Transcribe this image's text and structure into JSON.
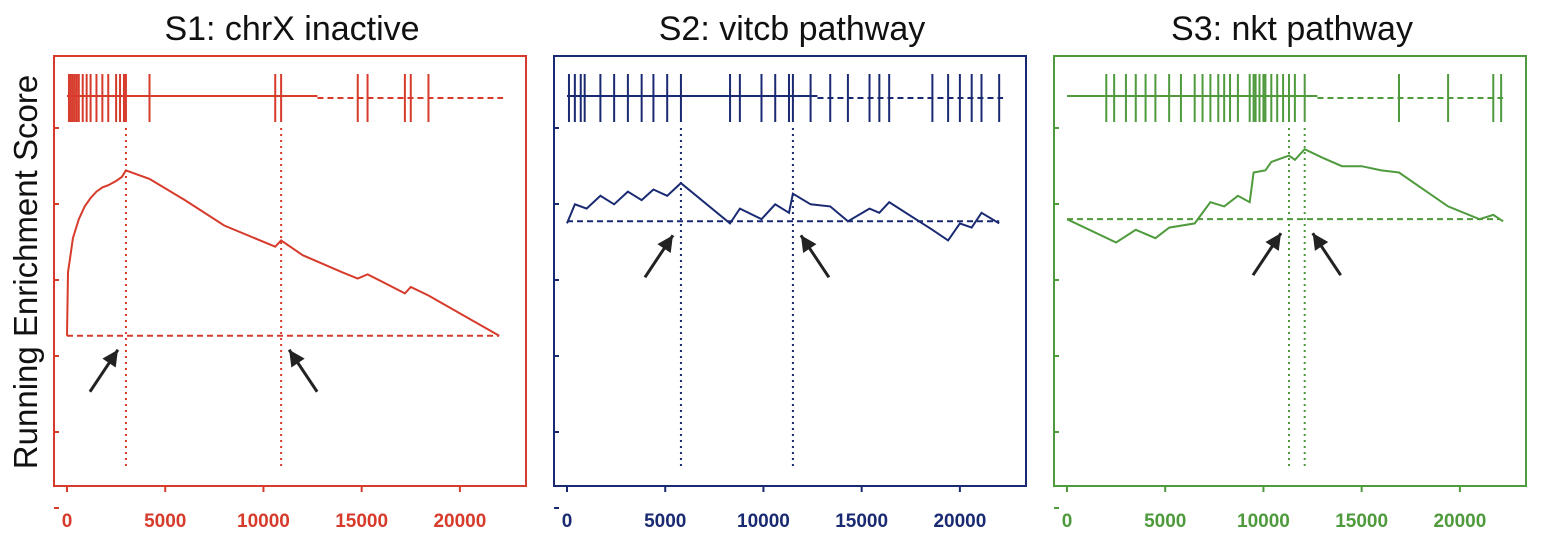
{
  "ylabel": "Running Enrichment Score",
  "chart_data": [
    {
      "type": "line",
      "title": "S1: chrX inactive",
      "color": "#d63b2b",
      "xlim": [
        0,
        22500
      ],
      "xticks": [
        "0",
        "5000",
        "10000",
        "15000",
        "20000"
      ],
      "xtick_values": [
        0,
        5000,
        10000,
        15000,
        20000
      ],
      "ylim": [
        0,
        1
      ],
      "ylabel": "Running Enrichment Score",
      "hits": [
        100,
        200,
        300,
        400,
        500,
        600,
        800,
        1000,
        1200,
        1500,
        1800,
        2100,
        2500,
        2700,
        2900,
        3000,
        4200,
        10600,
        10900,
        14800,
        15300,
        17200,
        17500,
        18400
      ],
      "running_score": [
        [
          0,
          0.02
        ],
        [
          50,
          0.32
        ],
        [
          150,
          0.38
        ],
        [
          300,
          0.48
        ],
        [
          600,
          0.57
        ],
        [
          900,
          0.63
        ],
        [
          1200,
          0.67
        ],
        [
          1500,
          0.7
        ],
        [
          1800,
          0.72
        ],
        [
          2100,
          0.73
        ],
        [
          2500,
          0.75
        ],
        [
          2800,
          0.77
        ],
        [
          3000,
          0.8
        ],
        [
          4200,
          0.76
        ],
        [
          6000,
          0.66
        ],
        [
          8000,
          0.54
        ],
        [
          10600,
          0.44
        ],
        [
          10900,
          0.47
        ],
        [
          12000,
          0.4
        ],
        [
          14000,
          0.32
        ],
        [
          14800,
          0.29
        ],
        [
          15300,
          0.31
        ],
        [
          17200,
          0.22
        ],
        [
          17500,
          0.25
        ],
        [
          18400,
          0.21
        ],
        [
          22000,
          0.02
        ]
      ],
      "baseline": 0.02,
      "marker_x": [
        3000,
        10900
      ],
      "legend": ""
    },
    {
      "type": "line",
      "title": "S2: vitcb pathway",
      "color": "#1a2a72",
      "xlim": [
        0,
        22500
      ],
      "xticks": [
        "0",
        "5000",
        "10000",
        "15000",
        "20000"
      ],
      "xtick_values": [
        0,
        5000,
        10000,
        15000,
        20000
      ],
      "ylim": [
        0,
        1
      ],
      "hits": [
        100,
        400,
        700,
        900,
        1700,
        2400,
        3100,
        3800,
        4400,
        5100,
        5800,
        8300,
        8800,
        9900,
        10600,
        11300,
        11500,
        12400,
        13400,
        14300,
        15400,
        15900,
        16400,
        18600,
        19400,
        20000,
        20600,
        21100,
        22000
      ],
      "running_score": [
        [
          0,
          0.55
        ],
        [
          400,
          0.64
        ],
        [
          1000,
          0.62
        ],
        [
          1700,
          0.68
        ],
        [
          2400,
          0.64
        ],
        [
          3100,
          0.7
        ],
        [
          3800,
          0.66
        ],
        [
          4400,
          0.71
        ],
        [
          5100,
          0.68
        ],
        [
          5800,
          0.74
        ],
        [
          8300,
          0.55
        ],
        [
          8800,
          0.62
        ],
        [
          9900,
          0.57
        ],
        [
          10600,
          0.64
        ],
        [
          11300,
          0.6
        ],
        [
          11500,
          0.69
        ],
        [
          12400,
          0.64
        ],
        [
          13400,
          0.63
        ],
        [
          14300,
          0.56
        ],
        [
          15400,
          0.62
        ],
        [
          15900,
          0.6
        ],
        [
          16400,
          0.65
        ],
        [
          18600,
          0.52
        ],
        [
          19400,
          0.47
        ],
        [
          20000,
          0.55
        ],
        [
          20600,
          0.53
        ],
        [
          21100,
          0.6
        ],
        [
          22000,
          0.55
        ]
      ],
      "baseline": 0.56,
      "marker_x": [
        5800,
        11500
      ],
      "legend": ""
    },
    {
      "type": "line",
      "title": "S3: nkt pathway",
      "color": "#4e9a3c",
      "xlim": [
        0,
        22500
      ],
      "xticks": [
        "0",
        "5000",
        "10000",
        "15000",
        "20000"
      ],
      "xtick_values": [
        0,
        5000,
        10000,
        15000,
        20000
      ],
      "ylim": [
        0,
        1
      ],
      "hits": [
        2000,
        2400,
        3000,
        3500,
        4000,
        4500,
        5200,
        5800,
        6500,
        6900,
        7300,
        7700,
        8000,
        8300,
        8700,
        9300,
        9500,
        9600,
        9800,
        10000,
        10100,
        10400,
        10700,
        11000,
        11300,
        11600,
        12100,
        16900,
        19400,
        21700,
        22100
      ],
      "running_score": [
        [
          0,
          0.57
        ],
        [
          2500,
          0.46
        ],
        [
          3500,
          0.52
        ],
        [
          4500,
          0.48
        ],
        [
          5200,
          0.53
        ],
        [
          6500,
          0.55
        ],
        [
          7300,
          0.65
        ],
        [
          8000,
          0.63
        ],
        [
          8700,
          0.68
        ],
        [
          9300,
          0.65
        ],
        [
          9500,
          0.79
        ],
        [
          10100,
          0.8
        ],
        [
          10400,
          0.84
        ],
        [
          11000,
          0.86
        ],
        [
          11300,
          0.87
        ],
        [
          11600,
          0.85
        ],
        [
          12100,
          0.9
        ],
        [
          13000,
          0.86
        ],
        [
          14000,
          0.82
        ],
        [
          15000,
          0.82
        ],
        [
          16000,
          0.8
        ],
        [
          16900,
          0.79
        ],
        [
          18000,
          0.72
        ],
        [
          19400,
          0.63
        ],
        [
          21000,
          0.57
        ],
        [
          21700,
          0.59
        ],
        [
          22200,
          0.56
        ]
      ],
      "baseline": 0.57,
      "marker_x": [
        11300,
        12100
      ],
      "legend": ""
    }
  ]
}
